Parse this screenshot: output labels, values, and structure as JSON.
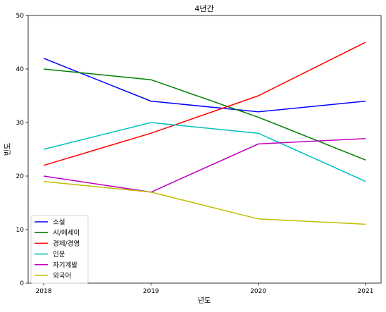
{
  "chart_data": {
    "type": "line",
    "title": "4년간",
    "xlabel": "년도",
    "ylabel": "빈도",
    "x": [
      "2018",
      "2019",
      "2020",
      "2021"
    ],
    "ylim": [
      0,
      50
    ],
    "yticks": [
      "0",
      "10",
      "20",
      "30",
      "40",
      "50"
    ],
    "grid": false,
    "legend_position": "lower-left",
    "series": [
      {
        "name": "소설",
        "color": "#0000ff",
        "values": [
          42,
          34,
          32,
          34
        ]
      },
      {
        "name": "시/에세이",
        "color": "#008000",
        "values": [
          40,
          38,
          31,
          23
        ]
      },
      {
        "name": "경제/경영",
        "color": "#ff0000",
        "values": [
          22,
          28,
          35,
          45
        ]
      },
      {
        "name": "인문",
        "color": "#00bfbf",
        "values": [
          25,
          30,
          28,
          19
        ]
      },
      {
        "name": "자기계발",
        "color": "#bf00bf",
        "values": [
          20,
          17,
          26,
          27
        ]
      },
      {
        "name": "외국어",
        "color": "#bfbf00",
        "values": [
          19,
          17,
          12,
          11
        ]
      }
    ]
  }
}
